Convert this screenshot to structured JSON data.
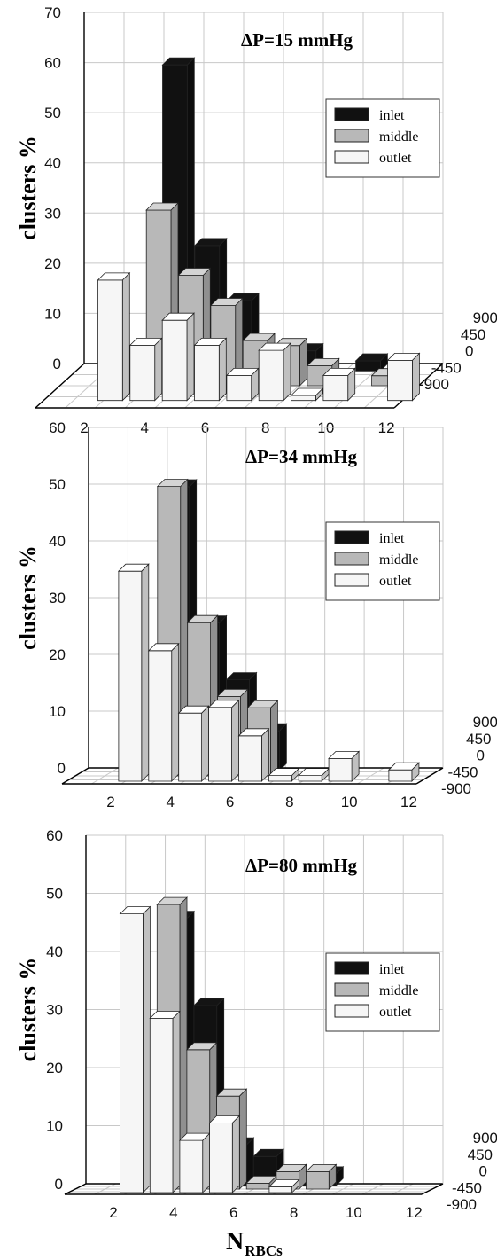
{
  "chart_data": [
    {
      "type": "bar",
      "title": "ΔP=15 mmHg",
      "ylabel": "clusters %",
      "ylim": [
        0,
        70
      ],
      "yticks": [
        "0",
        "10",
        "20",
        "30",
        "40",
        "50",
        "60",
        "70"
      ],
      "x": [
        1,
        2,
        3,
        4,
        5,
        6,
        7,
        8,
        9,
        10,
        11,
        12
      ],
      "xticks": [
        "2",
        "4",
        "6",
        "8",
        "10",
        "12"
      ],
      "zticks": [
        "900",
        "450",
        "0",
        "-450",
        "-900"
      ],
      "legend_position": "right",
      "series": [
        {
          "name": "inlet",
          "values": [
            0,
            0,
            61,
            25,
            14,
            0,
            4,
            0,
            2,
            0,
            0,
            0
          ]
        },
        {
          "name": "middle",
          "values": [
            0,
            0,
            35,
            22,
            16,
            9,
            8,
            4,
            0,
            2,
            0,
            0
          ]
        },
        {
          "name": "outlet",
          "values": [
            0,
            24,
            11,
            16,
            11,
            5,
            10,
            1,
            5,
            0,
            8,
            0
          ]
        }
      ]
    },
    {
      "type": "bar",
      "title": "ΔP=34 mmHg",
      "ylabel": "clusters %",
      "ylim": [
        0,
        60
      ],
      "yticks": [
        "0",
        "10",
        "20",
        "30",
        "40",
        "50",
        "60"
      ],
      "x": [
        1,
        2,
        3,
        4,
        5,
        6,
        7,
        8,
        9,
        10,
        11,
        12
      ],
      "xticks": [
        "2",
        "4",
        "6",
        "8",
        "10",
        "12"
      ],
      "zticks": [
        "900",
        "450",
        "0",
        "-450",
        "-900"
      ],
      "legend_position": "right",
      "series": [
        {
          "name": "inlet",
          "values": [
            0,
            0,
            50,
            26,
            16,
            7,
            0,
            0,
            0,
            0,
            0,
            0
          ]
        },
        {
          "name": "middle",
          "values": [
            0,
            0,
            51,
            27,
            14,
            12,
            0,
            0,
            0,
            0,
            0,
            0
          ]
        },
        {
          "name": "outlet",
          "values": [
            0,
            37,
            23,
            12,
            13,
            8,
            1,
            1,
            4,
            0,
            2,
            0
          ]
        }
      ]
    },
    {
      "type": "bar",
      "title": "ΔP=80 mmHg",
      "ylabel": "clusters %",
      "ylim": [
        0,
        60
      ],
      "yticks": [
        "0",
        "10",
        "20",
        "30",
        "40",
        "50",
        "60"
      ],
      "x": [
        1,
        2,
        3,
        4,
        5,
        6,
        7,
        8,
        9,
        10,
        11,
        12
      ],
      "xticks": [
        "2",
        "4",
        "6",
        "8",
        "10",
        "12"
      ],
      "zticks": [
        "900",
        "450",
        "0",
        "-450",
        "-900"
      ],
      "legend_position": "right",
      "xlabel": "N",
      "xlabel_subscript": "RBCs",
      "series": [
        {
          "name": "inlet",
          "values": [
            0,
            0,
            46,
            31,
            7,
            5,
            1,
            2,
            0,
            0,
            0,
            0
          ]
        },
        {
          "name": "middle",
          "values": [
            0,
            0,
            49,
            24,
            16,
            1,
            3,
            3,
            0,
            0,
            0,
            0
          ]
        },
        {
          "name": "outlet",
          "values": [
            0,
            48,
            30,
            9,
            12,
            0,
            1,
            0,
            0,
            0,
            0,
            0
          ]
        }
      ]
    }
  ],
  "colors": {
    "inlet": "#111111",
    "middle": "#b8b8b8",
    "outlet": "#f6f6f6"
  }
}
